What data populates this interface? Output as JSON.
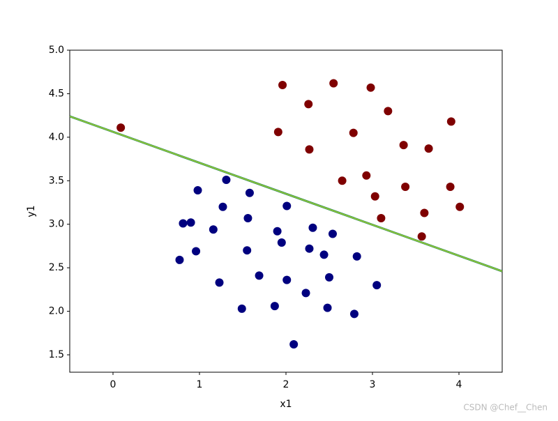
{
  "chart_data": {
    "type": "scatter",
    "xlabel": "x1",
    "ylabel": "y1",
    "watermark": "CSDN @Chef__Chen",
    "xlim": [
      -0.5,
      4.5
    ],
    "ylim": [
      1.3,
      5.0
    ],
    "xticks": [
      0,
      1,
      2,
      3,
      4
    ],
    "yticks": [
      {
        "value": 1.5,
        "label": "1.5"
      },
      {
        "value": 2.0,
        "label": "2.0"
      },
      {
        "value": 2.5,
        "label": "2.5"
      },
      {
        "value": 3.0,
        "label": "3.0"
      },
      {
        "value": 3.5,
        "label": "3.5"
      },
      {
        "value": 4.0,
        "label": "4.0"
      },
      {
        "value": 4.5,
        "label": "4.5"
      },
      {
        "value": 5.0,
        "label": "5.0"
      }
    ],
    "series": [
      {
        "color": "#7f0000",
        "x": [
          0.09,
          1.96,
          2.55,
          2.98,
          2.26,
          3.18,
          1.91,
          2.78,
          3.91,
          2.27,
          3.36,
          3.65,
          2.93,
          2.65,
          3.38,
          3.9,
          3.03,
          4.01,
          3.6,
          3.1,
          3.57
        ],
        "values": [
          4.11,
          4.6,
          4.62,
          4.57,
          4.38,
          4.3,
          4.06,
          4.05,
          4.18,
          3.86,
          3.91,
          3.87,
          3.56,
          3.5,
          3.43,
          3.43,
          3.32,
          3.2,
          3.13,
          3.07,
          2.86
        ]
      },
      {
        "color": "#00007f",
        "x": [
          1.31,
          0.98,
          1.58,
          1.27,
          2.01,
          0.81,
          0.9,
          1.56,
          1.16,
          1.9,
          2.31,
          2.54,
          1.95,
          0.96,
          1.55,
          2.27,
          2.44,
          2.82,
          0.77,
          1.69,
          2.5,
          2.01,
          1.23,
          3.05,
          2.23,
          1.87,
          1.49,
          2.48,
          2.79,
          2.09
        ],
        "values": [
          3.51,
          3.39,
          3.36,
          3.2,
          3.21,
          3.01,
          3.02,
          3.07,
          2.94,
          2.92,
          2.96,
          2.89,
          2.79,
          2.69,
          2.7,
          2.72,
          2.65,
          2.63,
          2.59,
          2.41,
          2.39,
          2.36,
          2.33,
          2.3,
          2.21,
          2.06,
          2.03,
          2.04,
          1.97,
          1.62
        ]
      }
    ],
    "lines": [
      {
        "color": "#9acd32",
        "x": [
          -0.5,
          4.5
        ],
        "values": [
          4.24,
          2.46
        ]
      }
    ]
  }
}
